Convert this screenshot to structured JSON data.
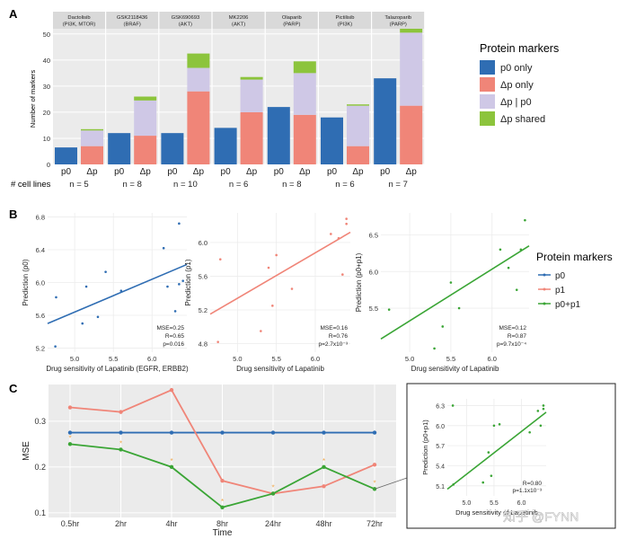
{
  "figure": {
    "panel_a": "A",
    "panel_b": "B",
    "panel_c": "C",
    "watermark": "知乎 @FYNN"
  },
  "colors": {
    "p0_only": "#2f6db3",
    "dp_only": "#f08578",
    "dp_or_p0": "#cfc8e6",
    "dp_shared": "#8cc43c",
    "line_p0": "#2f6db3",
    "line_p1": "#f08578",
    "line_p0p1": "#3aa535",
    "star": "#f3a84a",
    "connector": "#666666"
  },
  "chart_data": [
    {
      "type": "bar",
      "stacked": true,
      "ylabel": "Number of markers",
      "ylim": [
        0,
        52
      ],
      "yticks": [
        0,
        10,
        20,
        30,
        40,
        50
      ],
      "xrow_label": "# cell lines",
      "grid": true,
      "legend": {
        "title": "Protein markers",
        "position": "right",
        "entries": [
          {
            "label": "p0 only",
            "color_key": "p0_only"
          },
          {
            "label": "Δp only",
            "color_key": "dp_only"
          },
          {
            "label": "Δp | p0",
            "color_key": "dp_or_p0"
          },
          {
            "label": "Δp shared",
            "color_key": "dp_shared"
          }
        ]
      },
      "facets": [
        {
          "drug": "Dactolisib",
          "target": "(PI3K, MTOR)",
          "n": "n = 5",
          "bars": [
            {
              "label": "p0",
              "segments": {
                "p0_only": 6.5
              }
            },
            {
              "label": "Δp",
              "segments": {
                "dp_only": 7,
                "dp_or_p0": 6,
                "dp_shared": 0.5
              }
            }
          ]
        },
        {
          "drug": "GSK2118436",
          "target": "(BRAF)",
          "n": "n = 8",
          "bars": [
            {
              "label": "p0",
              "segments": {
                "p0_only": 12
              }
            },
            {
              "label": "Δp",
              "segments": {
                "dp_only": 11,
                "dp_or_p0": 13.5,
                "dp_shared": 1.5
              }
            }
          ]
        },
        {
          "drug": "GSK690693",
          "target": "(AKT)",
          "n": "n = 10",
          "bars": [
            {
              "label": "p0",
              "segments": {
                "p0_only": 12
              }
            },
            {
              "label": "Δp",
              "segments": {
                "dp_only": 28,
                "dp_or_p0": 9,
                "dp_shared": 5.5
              }
            }
          ]
        },
        {
          "drug": "MK2206",
          "target": "(AKT)",
          "n": "n = 6",
          "bars": [
            {
              "label": "p0",
              "segments": {
                "p0_only": 14
              }
            },
            {
              "label": "Δp",
              "segments": {
                "dp_only": 20,
                "dp_or_p0": 12.5,
                "dp_shared": 1
              }
            }
          ]
        },
        {
          "drug": "Olaparib",
          "target": "(PARP)",
          "n": "n = 8",
          "bars": [
            {
              "label": "p0",
              "segments": {
                "p0_only": 22
              }
            },
            {
              "label": "Δp",
              "segments": {
                "dp_only": 19,
                "dp_or_p0": 16,
                "dp_shared": 4.5
              }
            }
          ]
        },
        {
          "drug": "Pictilisib",
          "target": "(PI3K)",
          "n": "n = 6",
          "bars": [
            {
              "label": "p0",
              "segments": {
                "p0_only": 18
              }
            },
            {
              "label": "Δp",
              "segments": {
                "dp_only": 7,
                "dp_or_p0": 15.5,
                "dp_shared": 0.5
              }
            }
          ]
        },
        {
          "drug": "Talazoparib",
          "target": "(PARP)",
          "n": "n = 7",
          "bars": [
            {
              "label": "p0",
              "segments": {
                "p0_only": 33
              }
            },
            {
              "label": "Δp",
              "segments": {
                "dp_only": 22.5,
                "dp_or_p0": 28,
                "dp_shared": 1.5
              }
            }
          ]
        }
      ]
    },
    {
      "type": "scatter",
      "xlabel": "Drug sensitivity of Lapatinib (EGFR, ERBB2)",
      "ylabel": "Prediction (p0)",
      "xlim": [
        4.65,
        6.45
      ],
      "ylim": [
        5.15,
        6.85
      ],
      "xticks": [
        5.0,
        5.5,
        6.0
      ],
      "yticks": [
        5.2,
        5.6,
        6.0,
        6.4,
        6.8
      ],
      "xtick_labels": [
        "5.0",
        "5.5",
        "6.0"
      ],
      "ytick_labels": [
        "5.2",
        "5.6",
        "6.0",
        "6.4",
        "6.8"
      ],
      "color_key": "line_p0",
      "points": [
        [
          4.75,
          5.22
        ],
        [
          4.76,
          5.82
        ],
        [
          5.1,
          5.5
        ],
        [
          5.15,
          5.95
        ],
        [
          5.3,
          5.58
        ],
        [
          5.4,
          6.13
        ],
        [
          5.6,
          5.9
        ],
        [
          6.15,
          6.42
        ],
        [
          6.2,
          5.95
        ],
        [
          6.35,
          5.98
        ],
        [
          6.4,
          6.02
        ],
        [
          6.35,
          6.72
        ],
        [
          6.3,
          5.65
        ]
      ],
      "fit": [
        [
          4.65,
          5.5
        ],
        [
          6.45,
          6.22
        ]
      ],
      "stats": [
        "MSE=0.25",
        "R=0.65",
        "p=0.016"
      ]
    },
    {
      "type": "scatter",
      "xlabel": "Drug sensitivity of Lapatinib",
      "ylabel": "Prediction (p1)",
      "xlim": [
        4.65,
        6.45
      ],
      "ylim": [
        4.7,
        6.35
      ],
      "xticks": [
        5.0,
        5.5,
        6.0
      ],
      "yticks": [
        4.8,
        5.2,
        5.6,
        6.0
      ],
      "xtick_labels": [
        "5.0",
        "5.5",
        "6.0"
      ],
      "ytick_labels": [
        "4.8",
        "5.2",
        "5.6",
        "6.0"
      ],
      "color_key": "line_p1",
      "points": [
        [
          4.75,
          4.82
        ],
        [
          4.78,
          5.8
        ],
        [
          5.3,
          4.95
        ],
        [
          5.4,
          5.7
        ],
        [
          5.45,
          5.25
        ],
        [
          5.5,
          5.85
        ],
        [
          5.7,
          5.45
        ],
        [
          6.2,
          6.1
        ],
        [
          6.3,
          6.05
        ],
        [
          6.35,
          5.62
        ],
        [
          6.4,
          6.22
        ],
        [
          6.4,
          6.28
        ]
      ],
      "fit": [
        [
          4.65,
          5.15
        ],
        [
          6.45,
          6.12
        ]
      ],
      "stats": [
        "MSE=0.16",
        "R=0.76",
        "p=2.7x10⁻³"
      ]
    },
    {
      "type": "scatter",
      "xlabel": "Drug sensitivity of Lapatinib",
      "ylabel": "Prediction (p0+p1)",
      "xlim": [
        4.65,
        6.45
      ],
      "ylim": [
        4.9,
        6.8
      ],
      "xticks": [
        5.0,
        5.5,
        6.0
      ],
      "yticks": [
        5.5,
        6.0,
        6.5
      ],
      "xtick_labels": [
        "5.0",
        "5.5",
        "6.0"
      ],
      "ytick_labels": [
        "5.5",
        "6.0",
        "6.5"
      ],
      "color_key": "line_p0p1",
      "points": [
        [
          4.75,
          5.48
        ],
        [
          5.3,
          4.95
        ],
        [
          5.4,
          5.25
        ],
        [
          5.5,
          5.85
        ],
        [
          5.6,
          5.5
        ],
        [
          6.1,
          6.3
        ],
        [
          6.2,
          6.05
        ],
        [
          6.3,
          5.75
        ],
        [
          6.35,
          6.3
        ],
        [
          6.4,
          6.7
        ]
      ],
      "fit": [
        [
          4.65,
          5.08
        ],
        [
          6.45,
          6.35
        ]
      ],
      "stats": [
        "MSE=0.12",
        "R=0.87",
        "p=9.7x10⁻⁴"
      ]
    },
    {
      "type": "line",
      "xlabel": "Time",
      "ylabel": "MSE",
      "categories": [
        "0.5hr",
        "2hr",
        "4hr",
        "8hr",
        "24hr",
        "48hr",
        "72hr"
      ],
      "ylim": [
        0.09,
        0.38
      ],
      "yticks": [
        0.1,
        0.2,
        0.3
      ],
      "ytick_labels": [
        "0.1",
        "0.2",
        "0.3"
      ],
      "grid": true,
      "series": [
        {
          "color_key": "line_p0",
          "values": [
            0.275,
            0.275,
            0.275,
            0.275,
            0.275,
            0.275,
            0.275
          ]
        },
        {
          "color_key": "line_p1",
          "values": [
            0.33,
            0.32,
            0.368,
            0.17,
            0.142,
            0.158,
            0.205
          ]
        },
        {
          "color_key": "line_p0p1",
          "values": [
            0.25,
            0.238,
            0.2,
            0.112,
            0.142,
            0.2,
            0.152
          ],
          "stars": true
        }
      ]
    },
    {
      "type": "scatter",
      "xlabel": "Drug sensitivity of Lapatinib",
      "ylabel": "Prediction (p0+p1)",
      "xlim": [
        4.65,
        6.45
      ],
      "ylim": [
        4.95,
        6.4
      ],
      "xticks": [
        5.0,
        5.5,
        6.0
      ],
      "yticks": [
        5.1,
        5.4,
        5.7,
        6.0,
        6.3
      ],
      "xtick_labels": [
        "5.0",
        "5.5",
        "6.0"
      ],
      "ytick_labels": [
        "5.1",
        "5.4",
        "5.7",
        "6.0",
        "6.3"
      ],
      "color_key": "line_p0p1",
      "points": [
        [
          4.75,
          6.3
        ],
        [
          4.76,
          5.12
        ],
        [
          5.3,
          5.15
        ],
        [
          5.4,
          5.6
        ],
        [
          5.45,
          5.25
        ],
        [
          5.5,
          6.0
        ],
        [
          5.6,
          6.02
        ],
        [
          6.15,
          5.9
        ],
        [
          6.3,
          6.22
        ],
        [
          6.35,
          6.0
        ],
        [
          6.4,
          6.3
        ],
        [
          6.4,
          6.25
        ]
      ],
      "fit": [
        [
          4.65,
          5.05
        ],
        [
          6.45,
          6.2
        ]
      ],
      "stats": [
        "R=0.80",
        "p=1.1x10⁻³"
      ]
    }
  ],
  "legend_b": {
    "title": "Protein markers",
    "entries": [
      {
        "label": "p0",
        "color_key": "line_p0"
      },
      {
        "label": "p1",
        "color_key": "line_p1"
      },
      {
        "label": "p0+p1",
        "color_key": "line_p0p1"
      }
    ]
  }
}
